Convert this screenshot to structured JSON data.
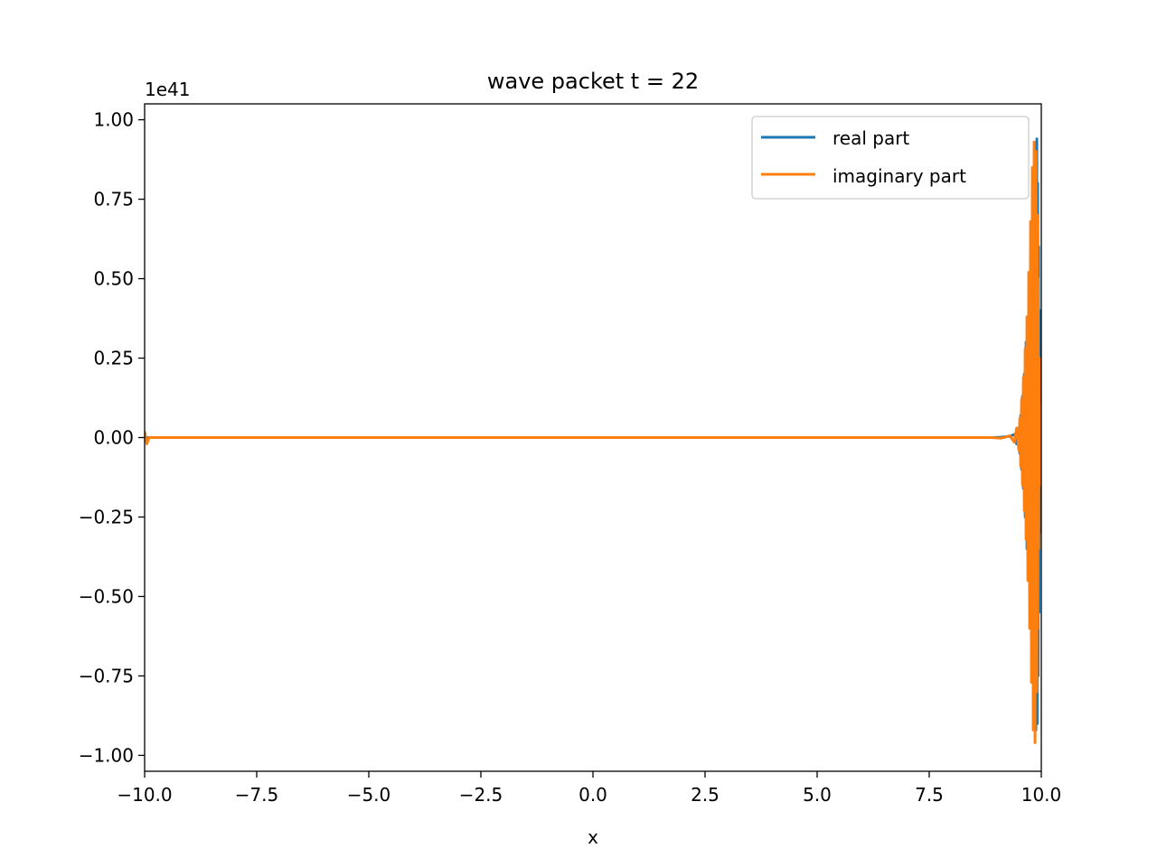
{
  "chart_data": {
    "type": "line",
    "title": "wave packet t = 22",
    "xlabel": "x",
    "ylabel": "",
    "y_offset_label": "1e41",
    "xlim": [
      -10,
      10
    ],
    "ylim": [
      -1.05,
      1.05
    ],
    "xticks": [
      -10,
      -7.5,
      -5,
      -2.5,
      0,
      2.5,
      5,
      7.5,
      10
    ],
    "xtick_labels": [
      "−10.0",
      "−7.5",
      "−5.0",
      "−2.5",
      "0.0",
      "2.5",
      "5.0",
      "7.5",
      "10.0"
    ],
    "yticks": [
      1,
      0.75,
      0.5,
      0.25,
      0,
      -0.25,
      -0.5,
      -0.75,
      -1
    ],
    "ytick_labels": [
      "1.00",
      "0.75",
      "0.50",
      "0.25",
      "0.00",
      "−0.25",
      "−0.50",
      "−0.75",
      "−1.00"
    ],
    "grid": false,
    "legend_position": "top-right",
    "series": [
      {
        "name": "real part",
        "color": "#1f77b4",
        "x": [
          -10,
          8.9,
          9.1,
          9.3,
          9.4,
          9.45,
          9.5,
          9.52,
          9.54,
          9.56,
          9.58,
          9.6,
          9.62,
          9.64,
          9.66,
          9.68,
          9.7,
          9.72,
          9.74,
          9.76,
          9.78,
          9.8,
          9.82,
          9.84,
          9.86,
          9.88,
          9.9,
          9.91,
          9.92,
          9.93,
          9.94,
          9.95,
          9.96,
          9.97,
          9.98,
          9.99,
          10
        ],
        "y": [
          0,
          0,
          0.001,
          0.004,
          0.01,
          -0.02,
          0.03,
          -0.05,
          0.07,
          -0.1,
          0.13,
          -0.16,
          0.2,
          -0.25,
          0.3,
          -0.35,
          0.36,
          -0.4,
          0.45,
          -0.5,
          0.55,
          -0.6,
          0.68,
          -0.75,
          0.85,
          -0.92,
          0.94,
          -0.9,
          0.8,
          -0.75,
          0.6,
          -0.55,
          0.4,
          -0.3,
          0.2,
          -0.1,
          0
        ]
      },
      {
        "name": "imaginary part",
        "color": "#ff7f0e",
        "x": [
          -10,
          -9.95,
          -9.9,
          8.9,
          9.1,
          9.3,
          9.4,
          9.45,
          9.5,
          9.52,
          9.54,
          9.56,
          9.58,
          9.6,
          9.62,
          9.64,
          9.66,
          9.68,
          9.7,
          9.72,
          9.74,
          9.76,
          9.78,
          9.8,
          9.82,
          9.84,
          9.86,
          9.88,
          9.9,
          9.91,
          9.92,
          9.93,
          9.94,
          9.95,
          9.96,
          9.97,
          9.98,
          9.99,
          10
        ],
        "y": [
          0.02,
          -0.02,
          0,
          0,
          -0.002,
          0.005,
          -0.015,
          0.03,
          -0.04,
          0.06,
          -0.09,
          0.12,
          -0.15,
          0.19,
          -0.23,
          0.28,
          -0.32,
          0.38,
          -0.45,
          0.52,
          -0.6,
          0.68,
          -0.77,
          0.85,
          -0.92,
          0.93,
          -0.96,
          0.9,
          -0.8,
          0.7,
          -0.6,
          0.5,
          -0.35,
          0.25,
          -0.15,
          0.1,
          -0.05,
          0.02,
          0
        ]
      }
    ]
  }
}
